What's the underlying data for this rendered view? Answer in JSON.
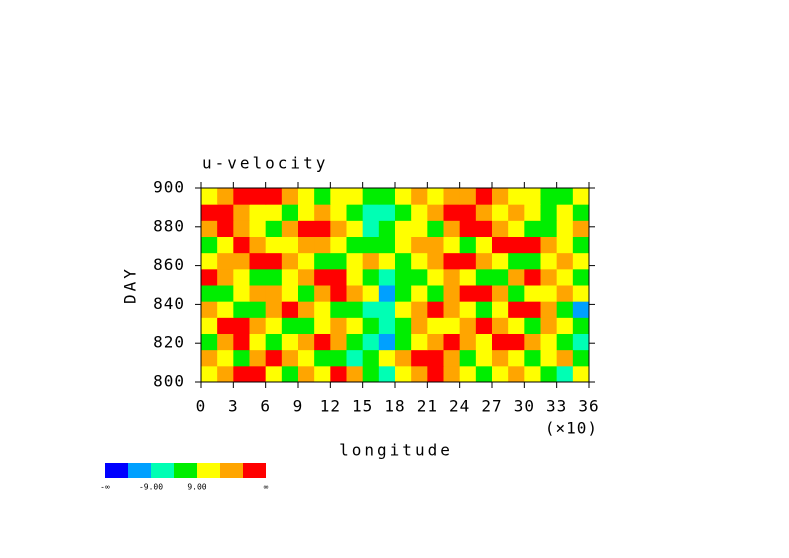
{
  "chart_data": {
    "type": "heatmap",
    "title": "u-velocity",
    "x_label": "longitude",
    "x_multiplier": "(×10)",
    "y_label": "DAY",
    "xlim": [
      0,
      36
    ],
    "xticks": [
      0,
      3,
      6,
      9,
      12,
      15,
      18,
      21,
      24,
      27,
      30,
      33,
      36
    ],
    "ylim": [
      800,
      900
    ],
    "yticks": [
      800,
      820,
      840,
      860,
      880,
      900
    ],
    "colorbar": {
      "colors": [
        "#0000ff",
        "#00a0ff",
        "#00ffb4",
        "#00ee00",
        "#ffff00",
        "#ffa500",
        "#ff0000"
      ],
      "labels": [
        "-∞",
        null,
        "-9.00",
        null,
        "9.00",
        null,
        null,
        "∞"
      ]
    },
    "z": [
      [
        4,
        5,
        6,
        6,
        4,
        3,
        5,
        4,
        6,
        5,
        3,
        2,
        4,
        5,
        6,
        5,
        4,
        3,
        4,
        5,
        4,
        3,
        2,
        4
      ],
      [
        5,
        4,
        3,
        5,
        6,
        5,
        4,
        3,
        3,
        2,
        3,
        4,
        5,
        6,
        6,
        5,
        3,
        4,
        5,
        4,
        3,
        4,
        5,
        3
      ],
      [
        3,
        5,
        6,
        4,
        3,
        4,
        5,
        6,
        5,
        3,
        2,
        1,
        3,
        4,
        5,
        6,
        5,
        4,
        6,
        6,
        5,
        4,
        3,
        2
      ],
      [
        4,
        6,
        6,
        5,
        4,
        3,
        3,
        4,
        5,
        4,
        3,
        2,
        3,
        5,
        4,
        4,
        5,
        6,
        5,
        4,
        3,
        5,
        4,
        3
      ],
      [
        5,
        4,
        3,
        3,
        5,
        6,
        5,
        4,
        3,
        3,
        2,
        2,
        4,
        5,
        6,
        5,
        4,
        3,
        4,
        6,
        6,
        5,
        3,
        1
      ],
      [
        3,
        3,
        4,
        5,
        5,
        4,
        3,
        5,
        6,
        5,
        4,
        1,
        3,
        4,
        3,
        5,
        6,
        6,
        5,
        3,
        4,
        4,
        5,
        4
      ],
      [
        6,
        5,
        4,
        3,
        3,
        4,
        5,
        6,
        6,
        4,
        3,
        2,
        3,
        3,
        4,
        5,
        4,
        3,
        3,
        5,
        6,
        5,
        4,
        3
      ],
      [
        4,
        5,
        5,
        6,
        6,
        5,
        4,
        3,
        3,
        4,
        5,
        4,
        3,
        4,
        5,
        6,
        6,
        5,
        4,
        3,
        3,
        4,
        5,
        4
      ],
      [
        3,
        4,
        6,
        5,
        4,
        4,
        5,
        5,
        4,
        3,
        3,
        3,
        4,
        5,
        5,
        4,
        3,
        4,
        6,
        6,
        6,
        5,
        4,
        3
      ],
      [
        5,
        6,
        5,
        4,
        3,
        5,
        6,
        6,
        5,
        4,
        2,
        3,
        4,
        4,
        3,
        5,
        6,
        6,
        5,
        4,
        3,
        3,
        4,
        5
      ],
      [
        6,
        6,
        5,
        4,
        4,
        3,
        4,
        5,
        4,
        3,
        2,
        2,
        3,
        4,
        5,
        6,
        6,
        5,
        4,
        5,
        4,
        3,
        4,
        3
      ],
      [
        4,
        5,
        6,
        6,
        6,
        5,
        4,
        3,
        4,
        4,
        3,
        3,
        4,
        5,
        4,
        5,
        5,
        6,
        5,
        4,
        4,
        3,
        3,
        4
      ]
    ]
  }
}
